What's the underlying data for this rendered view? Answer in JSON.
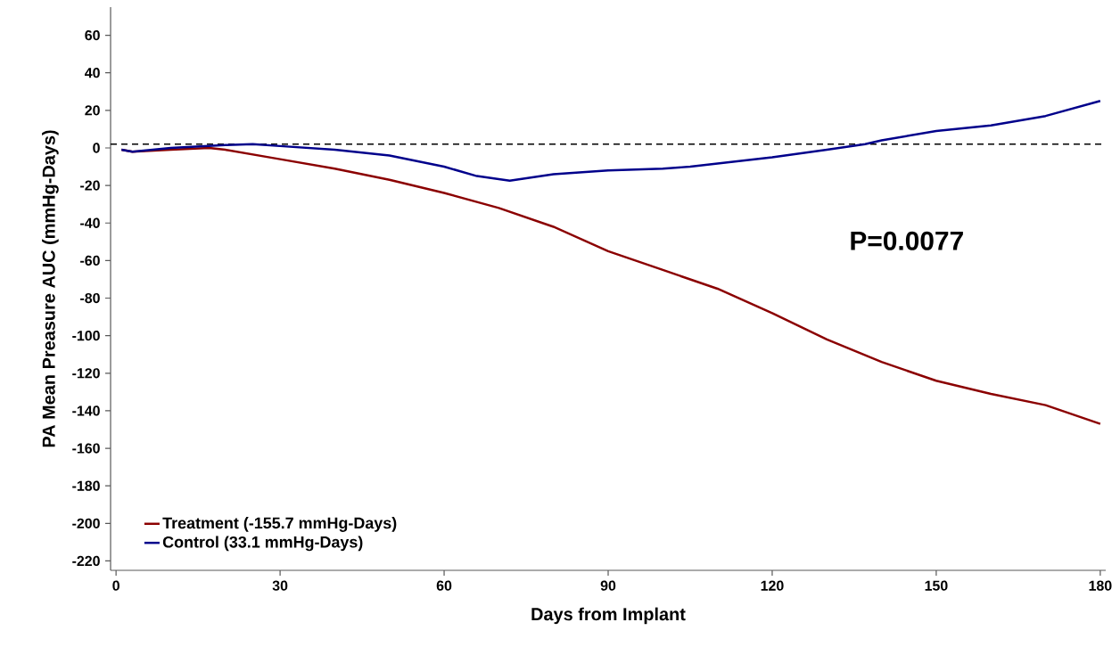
{
  "chart_data": {
    "type": "line",
    "xlabel": "Days from Implant",
    "ylabel": "PA Mean Preasure AUC (mmHg-Days)",
    "xlim": [
      -1,
      181
    ],
    "ylim": [
      -225,
      75
    ],
    "xticks": [
      0,
      30,
      60,
      90,
      120,
      150,
      180
    ],
    "yticks": [
      -220,
      -200,
      -180,
      -160,
      -140,
      -120,
      -100,
      -80,
      -60,
      -40,
      -20,
      0,
      20,
      40,
      60
    ],
    "legend": "bottom left",
    "grid": false,
    "marker": "none",
    "line_style": "solid",
    "ref_lines": [
      {
        "axis": "y",
        "value": 2,
        "line_style": "dashed",
        "color": "#000000"
      }
    ],
    "annotations": [
      "P=0.0077"
    ],
    "series": [
      {
        "name": "Treatment (-155.7 mmHg-Days)",
        "color": "#8b0000",
        "x": [
          1,
          3,
          10,
          17,
          20,
          30,
          40,
          50,
          60,
          70,
          80,
          90,
          100,
          110,
          120,
          130,
          140,
          150,
          160,
          170,
          180
        ],
        "values": [
          -1,
          -2,
          -1,
          0,
          -1,
          -6,
          -11,
          -17,
          -24,
          -32,
          -42,
          -55,
          -65,
          -75,
          -88,
          -102,
          -114,
          -124,
          -131,
          -137,
          -147
        ]
      },
      {
        "name": "Control (33.1 mmHg-Days)",
        "color": "#00008b",
        "x": [
          1,
          3,
          10,
          20,
          25,
          30,
          40,
          50,
          60,
          66,
          72,
          80,
          90,
          100,
          105,
          120,
          130,
          137,
          140,
          150,
          160,
          170,
          180
        ],
        "values": [
          -1,
          -2,
          0,
          1.5,
          2,
          1,
          -1,
          -4,
          -10,
          -15,
          -17.5,
          -14,
          -12,
          -11,
          -10,
          -5,
          -1,
          2,
          4,
          9,
          12,
          17,
          25
        ]
      }
    ]
  }
}
